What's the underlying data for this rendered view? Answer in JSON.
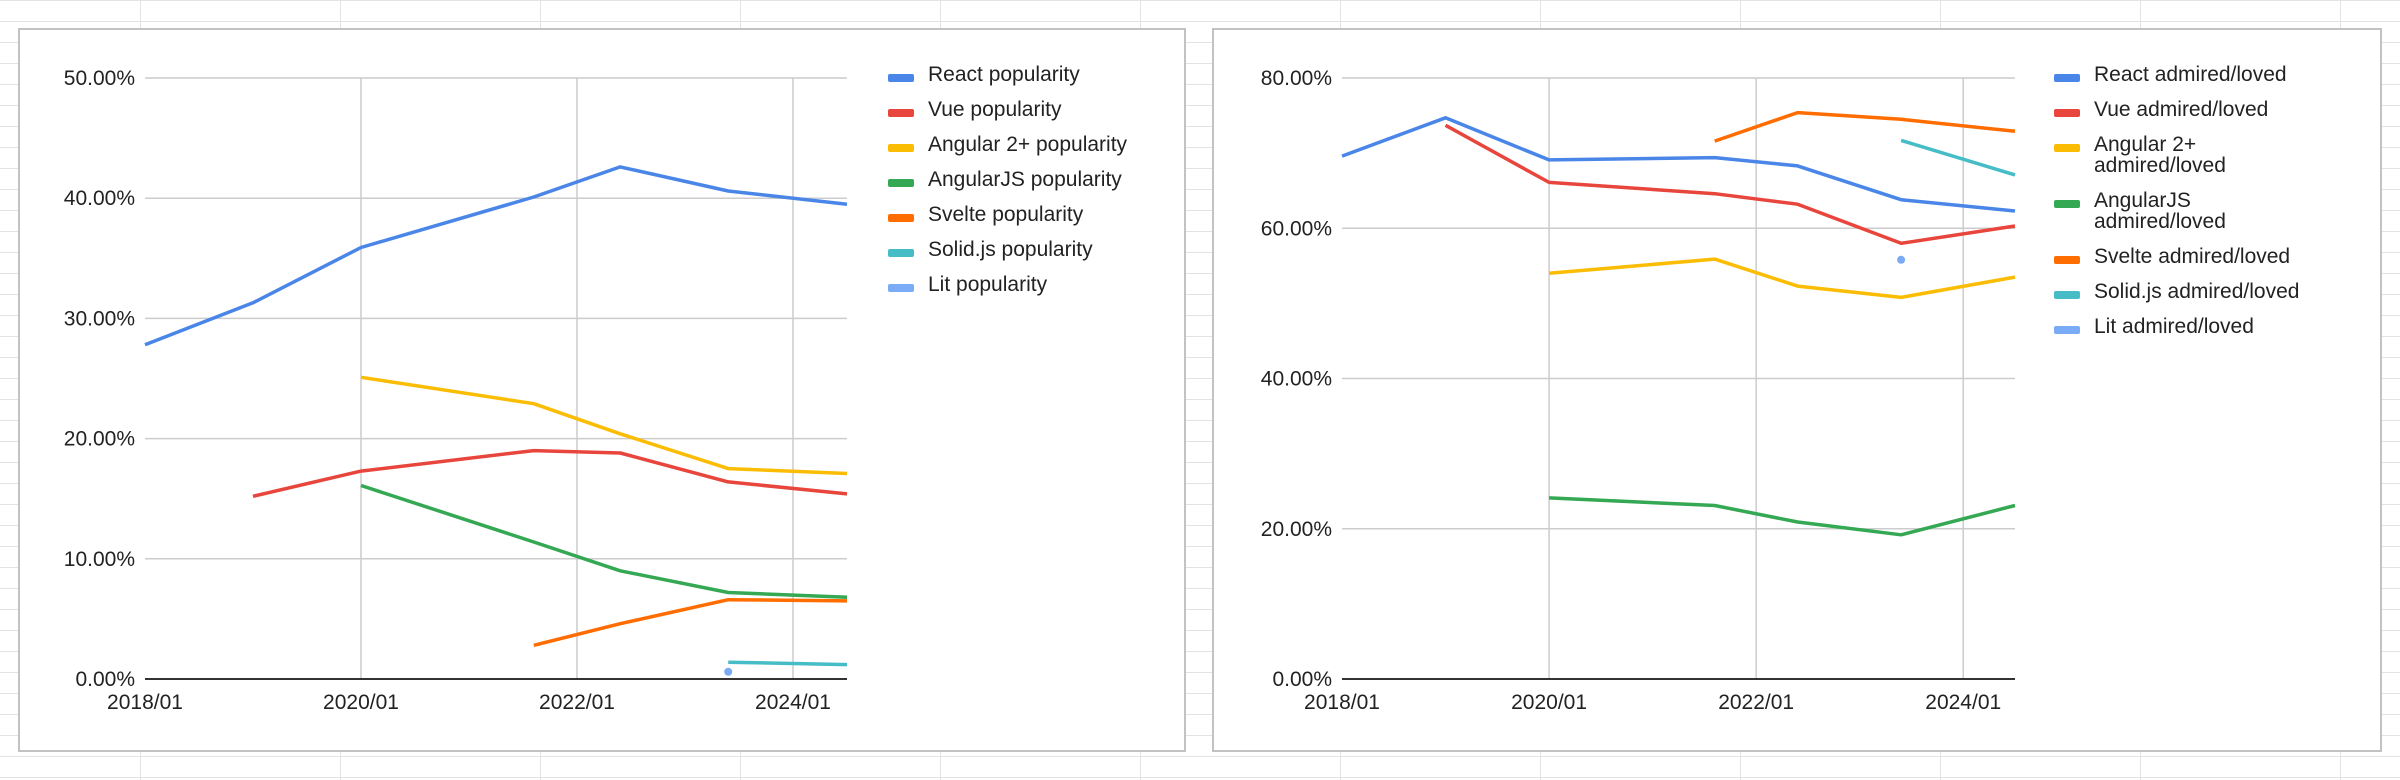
{
  "chart_data": [
    {
      "id": "popularity",
      "type": "line",
      "title": "",
      "xlabel": "",
      "ylabel": "",
      "x_ticks": [
        "2018/01",
        "2020/01",
        "2022/01",
        "2024/01"
      ],
      "y_ticks": [
        "0.00%",
        "10.00%",
        "20.00%",
        "30.00%",
        "40.00%",
        "50.00%"
      ],
      "xlim": [
        2018.0,
        2024.5
      ],
      "ylim": [
        0,
        50
      ],
      "grid": true,
      "legend_position": "right",
      "series": [
        {
          "name": "React popularity",
          "color": "#4a86e8",
          "points": [
            [
              2018.0,
              27.8
            ],
            [
              2019.0,
              31.3
            ],
            [
              2020.0,
              35.9
            ],
            [
              2021.6,
              40.1
            ],
            [
              2022.4,
              42.6
            ],
            [
              2023.4,
              40.6
            ],
            [
              2024.5,
              39.5
            ]
          ]
        },
        {
          "name": "Vue popularity",
          "color": "#e8453c",
          "points": [
            [
              2019.0,
              15.2
            ],
            [
              2020.0,
              17.3
            ],
            [
              2021.6,
              19.0
            ],
            [
              2022.4,
              18.8
            ],
            [
              2023.4,
              16.4
            ],
            [
              2024.5,
              15.4
            ]
          ]
        },
        {
          "name": "Angular 2+ popularity",
          "color": "#fbbc04",
          "points": [
            [
              2020.0,
              25.1
            ],
            [
              2021.6,
              22.9
            ],
            [
              2022.4,
              20.4
            ],
            [
              2023.4,
              17.5
            ],
            [
              2024.5,
              17.1
            ]
          ]
        },
        {
          "name": "AngularJS popularity",
          "color": "#34a853",
          "points": [
            [
              2020.0,
              16.1
            ],
            [
              2021.6,
              11.4
            ],
            [
              2022.4,
              9.0
            ],
            [
              2023.4,
              7.2
            ],
            [
              2024.5,
              6.8
            ]
          ]
        },
        {
          "name": "Svelte popularity",
          "color": "#ff6d01",
          "points": [
            [
              2021.6,
              2.8
            ],
            [
              2022.4,
              4.6
            ],
            [
              2023.4,
              6.6
            ],
            [
              2024.5,
              6.5
            ]
          ]
        },
        {
          "name": "Solid.js popularity",
          "color": "#46bdc6",
          "points": [
            [
              2023.4,
              1.4
            ],
            [
              2024.5,
              1.2
            ]
          ]
        },
        {
          "name": "Lit popularity",
          "color": "#7baaf7",
          "points": [
            [
              2023.4,
              0.6
            ]
          ]
        }
      ]
    },
    {
      "id": "admired",
      "type": "line",
      "title": "",
      "xlabel": "",
      "ylabel": "",
      "x_ticks": [
        "2018/01",
        "2020/01",
        "2022/01",
        "2024/01"
      ],
      "y_ticks": [
        "0.00%",
        "20.00%",
        "40.00%",
        "60.00%",
        "80.00%"
      ],
      "xlim": [
        2018.0,
        2024.5
      ],
      "ylim": [
        0,
        80
      ],
      "grid": true,
      "legend_position": "right",
      "series": [
        {
          "name": "React admired/loved",
          "color": "#4a86e8",
          "points": [
            [
              2018.0,
              69.6
            ],
            [
              2019.0,
              74.7
            ],
            [
              2020.0,
              69.1
            ],
            [
              2021.6,
              69.4
            ],
            [
              2022.4,
              68.3
            ],
            [
              2023.4,
              63.8
            ],
            [
              2024.5,
              62.3
            ]
          ]
        },
        {
          "name": "Vue admired/loved",
          "color": "#e8453c",
          "points": [
            [
              2019.0,
              73.7
            ],
            [
              2020.0,
              66.1
            ],
            [
              2021.6,
              64.6
            ],
            [
              2022.4,
              63.2
            ],
            [
              2023.4,
              58.0
            ],
            [
              2024.5,
              60.3
            ]
          ]
        },
        {
          "name": "Angular 2+\nadmired/loved",
          "color": "#fbbc04",
          "points": [
            [
              2020.0,
              54.0
            ],
            [
              2021.6,
              55.9
            ],
            [
              2022.4,
              52.3
            ],
            [
              2023.4,
              50.8
            ],
            [
              2024.5,
              53.5
            ]
          ]
        },
        {
          "name": "AngularJS\nadmired/loved",
          "color": "#34a853",
          "points": [
            [
              2020.0,
              24.1
            ],
            [
              2021.6,
              23.1
            ],
            [
              2022.4,
              20.9
            ],
            [
              2023.4,
              19.2
            ],
            [
              2024.5,
              23.1
            ]
          ]
        },
        {
          "name": "Svelte admired/loved",
          "color": "#ff6d01",
          "points": [
            [
              2021.6,
              71.6
            ],
            [
              2022.4,
              75.4
            ],
            [
              2023.4,
              74.5
            ],
            [
              2024.5,
              72.9
            ]
          ]
        },
        {
          "name": "Solid.js admired/loved",
          "color": "#46bdc6",
          "points": [
            [
              2023.4,
              71.7
            ],
            [
              2024.5,
              67.1
            ]
          ]
        },
        {
          "name": "Lit admired/loved",
          "color": "#7baaf7",
          "points": [
            [
              2023.4,
              55.8
            ]
          ]
        }
      ]
    }
  ]
}
